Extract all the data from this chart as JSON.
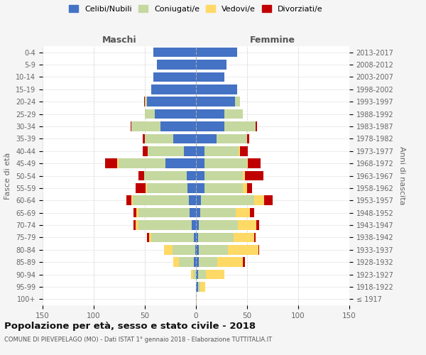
{
  "age_groups": [
    "100+",
    "95-99",
    "90-94",
    "85-89",
    "80-84",
    "75-79",
    "70-74",
    "65-69",
    "60-64",
    "55-59",
    "50-54",
    "45-49",
    "40-44",
    "35-39",
    "30-34",
    "25-29",
    "20-24",
    "15-19",
    "10-14",
    "5-9",
    "0-4"
  ],
  "birth_years": [
    "≤ 1917",
    "1918-1922",
    "1923-1927",
    "1928-1932",
    "1933-1937",
    "1938-1942",
    "1943-1947",
    "1948-1952",
    "1953-1957",
    "1958-1962",
    "1963-1967",
    "1968-1972",
    "1973-1977",
    "1978-1982",
    "1983-1987",
    "1988-1992",
    "1993-1997",
    "1998-2002",
    "2003-2007",
    "2008-2012",
    "2013-2017"
  ],
  "colors": {
    "celibi": "#4472c4",
    "coniugati": "#c5d8a0",
    "vedovi": "#ffd966",
    "divorziati": "#c00000"
  },
  "maschi": {
    "celibi": [
      0,
      0,
      0,
      2,
      1,
      2,
      4,
      6,
      7,
      8,
      9,
      30,
      12,
      22,
      35,
      40,
      48,
      44,
      42,
      38,
      42
    ],
    "coniugati": [
      0,
      0,
      3,
      15,
      22,
      42,
      52,
      50,
      55,
      40,
      42,
      46,
      35,
      28,
      28,
      10,
      2,
      0,
      0,
      0,
      0
    ],
    "vedovi": [
      0,
      0,
      2,
      5,
      8,
      2,
      3,
      2,
      1,
      1,
      0,
      1,
      0,
      0,
      0,
      0,
      0,
      0,
      0,
      0,
      0
    ],
    "divorziati": [
      0,
      0,
      0,
      0,
      0,
      2,
      2,
      3,
      5,
      10,
      5,
      12,
      5,
      2,
      1,
      0,
      1,
      0,
      0,
      0,
      0
    ]
  },
  "femmine": {
    "celibi": [
      0,
      2,
      2,
      3,
      3,
      2,
      3,
      4,
      5,
      8,
      8,
      8,
      8,
      20,
      28,
      28,
      38,
      40,
      28,
      30,
      40
    ],
    "coniugati": [
      0,
      2,
      8,
      18,
      28,
      35,
      38,
      35,
      52,
      38,
      38,
      42,
      34,
      30,
      30,
      18,
      5,
      0,
      0,
      0,
      0
    ],
    "vedovi": [
      1,
      5,
      18,
      25,
      30,
      20,
      18,
      14,
      10,
      4,
      2,
      1,
      1,
      0,
      0,
      0,
      0,
      0,
      0,
      0,
      0
    ],
    "divorziati": [
      0,
      0,
      0,
      2,
      1,
      1,
      3,
      4,
      8,
      5,
      18,
      12,
      8,
      2,
      2,
      0,
      0,
      0,
      0,
      0,
      0
    ]
  },
  "xlim": 150,
  "title": "Popolazione per età, sesso e stato civile - 2018",
  "subtitle": "COMUNE DI PIEVEPELAGO (MO) - Dati ISTAT 1° gennaio 2018 - Elaborazione TUTTITALIA.IT",
  "ylabel_left": "Fasce di età",
  "ylabel_right": "Anni di nascita",
  "xlabel_maschi": "Maschi",
  "xlabel_femmine": "Femmine",
  "legend_labels": [
    "Celibi/Nubili",
    "Coniugati/e",
    "Vedovi/e",
    "Divorziati/e"
  ],
  "bg_color": "#f5f5f5",
  "plot_bg_color": "#ffffff"
}
